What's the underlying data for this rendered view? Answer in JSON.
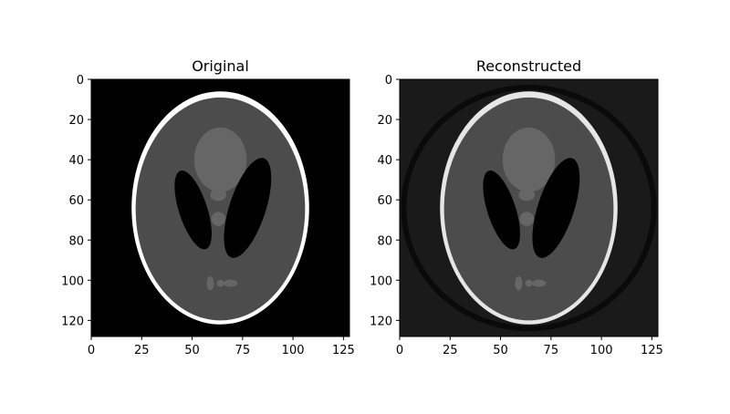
{
  "panels": [
    {
      "title": "Original",
      "image": "shepp-logan-phantom",
      "reconstruction_artifacts": false
    },
    {
      "title": "Reconstructed",
      "image": "shepp-logan-phantom-reconstruction",
      "reconstruction_artifacts": true
    }
  ],
  "x_axis": {
    "range": [
      0,
      128
    ],
    "ticks": [
      "0",
      "25",
      "50",
      "75",
      "100",
      "125"
    ]
  },
  "y_axis": {
    "range": [
      0,
      128
    ],
    "inverted": true,
    "ticks": [
      "0",
      "20",
      "40",
      "60",
      "80",
      "100",
      "120"
    ]
  },
  "colors": {
    "background": "#000000",
    "skull": "#ffffff",
    "brain": "#4c4c4c",
    "lesion_dark": "#000000",
    "small_features": "#666666",
    "recon_background": "#1a1a1a",
    "recon_skull": "#e6e6e6",
    "recon_ring": "#0a0a0a"
  }
}
